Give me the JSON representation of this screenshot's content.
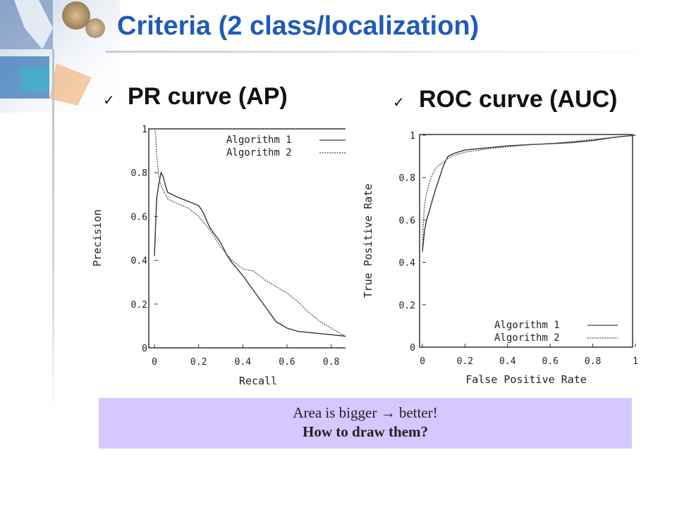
{
  "slide": {
    "title": "Criteria (2 class/localization)",
    "check_glyph": "✓",
    "left_heading": "PR curve (AP)",
    "right_heading": "ROC curve (AUC)",
    "note_line1": "Area is bigger → better!",
    "note_line2": "How to draw them?",
    "accent_color": "#1f5bb8",
    "note_bg_color": "#d5c7ff"
  },
  "chart_data": [
    {
      "type": "line",
      "xlabel": "Recall",
      "ylabel": "Precision",
      "xlim": [
        0,
        0.88
      ],
      "ylim": [
        0,
        1
      ],
      "x_ticks": [
        "0",
        "0.2",
        "0.4",
        "0.6",
        "0.8"
      ],
      "y_ticks": [
        "0",
        "0.2",
        "0.4",
        "0.6",
        "0.8",
        "1"
      ],
      "legend_position": "top-right",
      "grid": false,
      "series": [
        {
          "name": "Algorithm 1",
          "style": "solid",
          "x": [
            0,
            0.01,
            0.02,
            0.03,
            0.04,
            0.05,
            0.06,
            0.08,
            0.1,
            0.15,
            0.2,
            0.22,
            0.25,
            0.3,
            0.33,
            0.35,
            0.4,
            0.45,
            0.5,
            0.55,
            0.6,
            0.65,
            0.7,
            0.75,
            0.8,
            0.85,
            0.88
          ],
          "y": [
            0.42,
            0.68,
            0.75,
            0.8,
            0.78,
            0.74,
            0.71,
            0.7,
            0.69,
            0.67,
            0.65,
            0.62,
            0.55,
            0.48,
            0.42,
            0.39,
            0.33,
            0.26,
            0.19,
            0.12,
            0.09,
            0.075,
            0.07,
            0.065,
            0.06,
            0.055,
            0.05
          ]
        },
        {
          "name": "Algorithm 2",
          "style": "dotted",
          "x": [
            0,
            0.005,
            0.01,
            0.02,
            0.03,
            0.04,
            0.06,
            0.1,
            0.15,
            0.2,
            0.25,
            0.3,
            0.35,
            0.4,
            0.45,
            0.5,
            0.55,
            0.6,
            0.65,
            0.7,
            0.75,
            0.8,
            0.85,
            0.88
          ],
          "y": [
            1.0,
            0.98,
            0.88,
            0.78,
            0.74,
            0.72,
            0.68,
            0.66,
            0.64,
            0.6,
            0.54,
            0.46,
            0.4,
            0.36,
            0.35,
            0.31,
            0.28,
            0.25,
            0.21,
            0.16,
            0.12,
            0.09,
            0.06,
            0.05
          ]
        }
      ]
    },
    {
      "type": "line",
      "xlabel": "False Positive Rate",
      "ylabel": "True Positive Rate",
      "xlim": [
        0,
        1
      ],
      "ylim": [
        0,
        1
      ],
      "x_ticks": [
        "0",
        "0.2",
        "0.4",
        "0.6",
        "0.8",
        "1"
      ],
      "y_ticks": [
        "0",
        "0.2",
        "0.4",
        "0.6",
        "0.8",
        "1"
      ],
      "legend_position": "bottom-right",
      "grid": false,
      "series": [
        {
          "name": "Algorithm 1",
          "style": "solid",
          "x": [
            0,
            0.005,
            0.01,
            0.02,
            0.04,
            0.06,
            0.08,
            0.1,
            0.12,
            0.15,
            0.2,
            0.3,
            0.4,
            0.5,
            0.6,
            0.7,
            0.8,
            0.9,
            1.0
          ],
          "y": [
            0.45,
            0.5,
            0.55,
            0.6,
            0.67,
            0.74,
            0.8,
            0.86,
            0.9,
            0.915,
            0.93,
            0.94,
            0.95,
            0.955,
            0.96,
            0.965,
            0.975,
            0.99,
            1.0
          ]
        },
        {
          "name": "Algorithm 2",
          "style": "dotted",
          "x": [
            0,
            0.005,
            0.01,
            0.02,
            0.04,
            0.06,
            0.08,
            0.1,
            0.12,
            0.15,
            0.2,
            0.3,
            0.4,
            0.5,
            0.6,
            0.7,
            0.8,
            0.9,
            1.0
          ],
          "y": [
            0.47,
            0.6,
            0.67,
            0.73,
            0.8,
            0.84,
            0.86,
            0.875,
            0.89,
            0.905,
            0.92,
            0.935,
            0.945,
            0.955,
            0.96,
            0.97,
            0.98,
            0.99,
            1.0
          ]
        }
      ]
    }
  ]
}
